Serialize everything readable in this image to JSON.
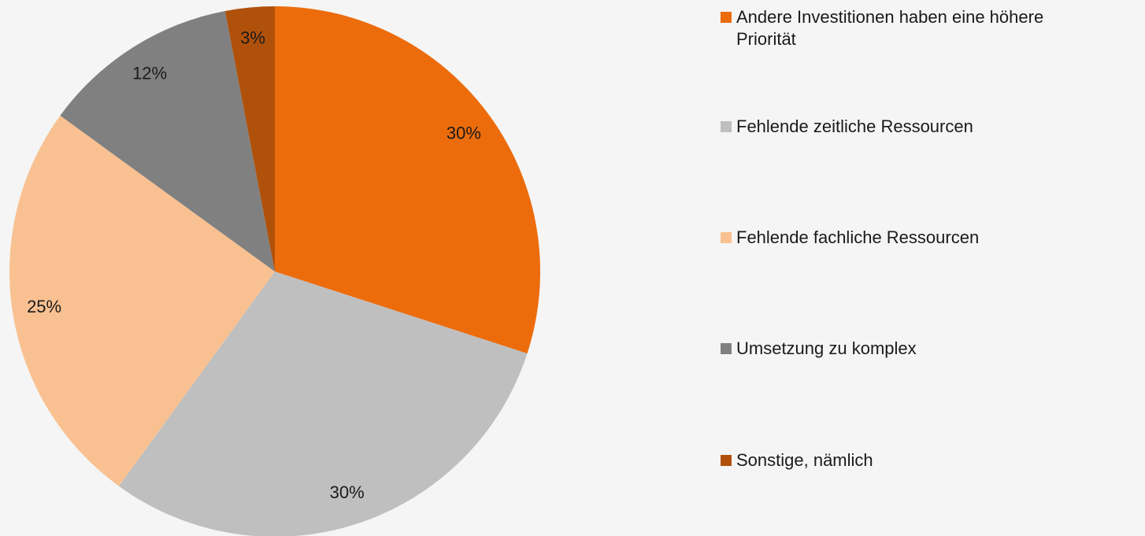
{
  "chart_data": {
    "type": "pie",
    "categories": [
      "Andere Investitionen haben eine höhere Priorität",
      "Fehlende zeitliche Ressourcen",
      "Fehlende fachliche Ressourcen",
      "Umsetzung zu komplex",
      "Sonstige, nämlich"
    ],
    "values": [
      30,
      30,
      25,
      12,
      3
    ],
    "value_labels": [
      "30%",
      "30%",
      "25%",
      "12%",
      "3%"
    ],
    "colors": [
      "#ec6c0c",
      "#bfbfbf",
      "#f9c191",
      "#808080",
      "#b0510b"
    ],
    "legend": "right"
  }
}
